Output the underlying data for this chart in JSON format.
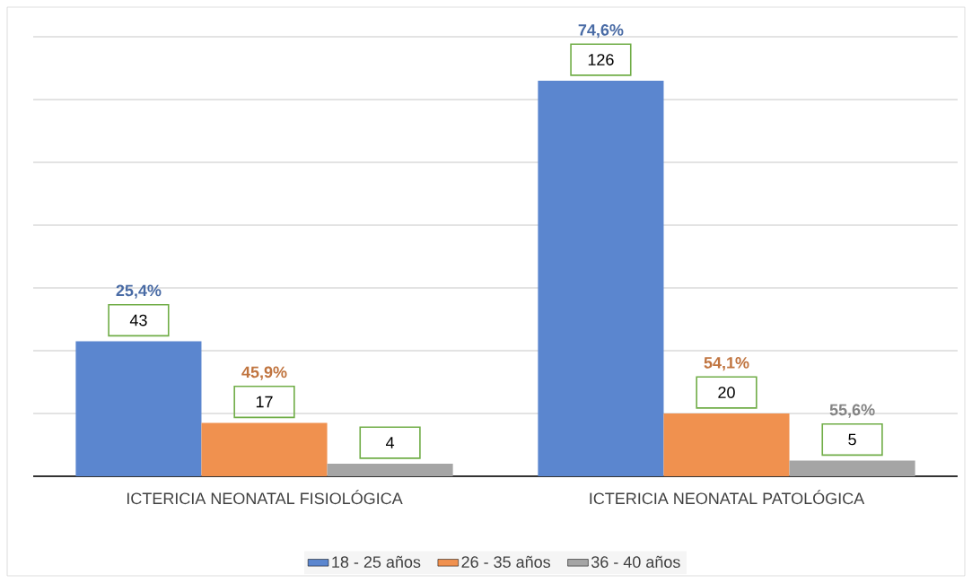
{
  "chart_data": {
    "type": "bar",
    "categories": [
      "ICTERICIA NEONATAL FISIOLÓGICA",
      "ICTERICIA NEONATAL PATOLÓGICA"
    ],
    "series": [
      {
        "name": "18 - 25 años",
        "color": "#5b86cf",
        "values": [
          43,
          126
        ],
        "value_labels": [
          "43",
          "126"
        ]
      },
      {
        "name": "26 - 35 años",
        "color": "#f0914f",
        "values": [
          17,
          20
        ],
        "value_labels": [
          "17",
          "20"
        ]
      },
      {
        "name": "36 - 40 años",
        "color": "#a5a5a5",
        "values": [
          4,
          5
        ],
        "value_labels": [
          "4",
          "5"
        ]
      }
    ],
    "annotations": [
      "25,4%",
      "45,9%",
      null,
      "74,6%",
      "54,1%",
      "55,6%"
    ],
    "ylim": [
      0,
      140
    ],
    "yticks": [
      {
        "value": 0,
        "label": null
      },
      {
        "value": 20,
        "label": null
      },
      {
        "value": 40,
        "label": null
      },
      {
        "value": 60,
        "label": null
      },
      {
        "value": 80,
        "label": null
      },
      {
        "value": 100,
        "label": null
      },
      {
        "value": 120,
        "label": null
      },
      {
        "value": 140,
        "label": null
      }
    ],
    "grid": "y",
    "legend": "bottom",
    "tick_labels": "x"
  }
}
